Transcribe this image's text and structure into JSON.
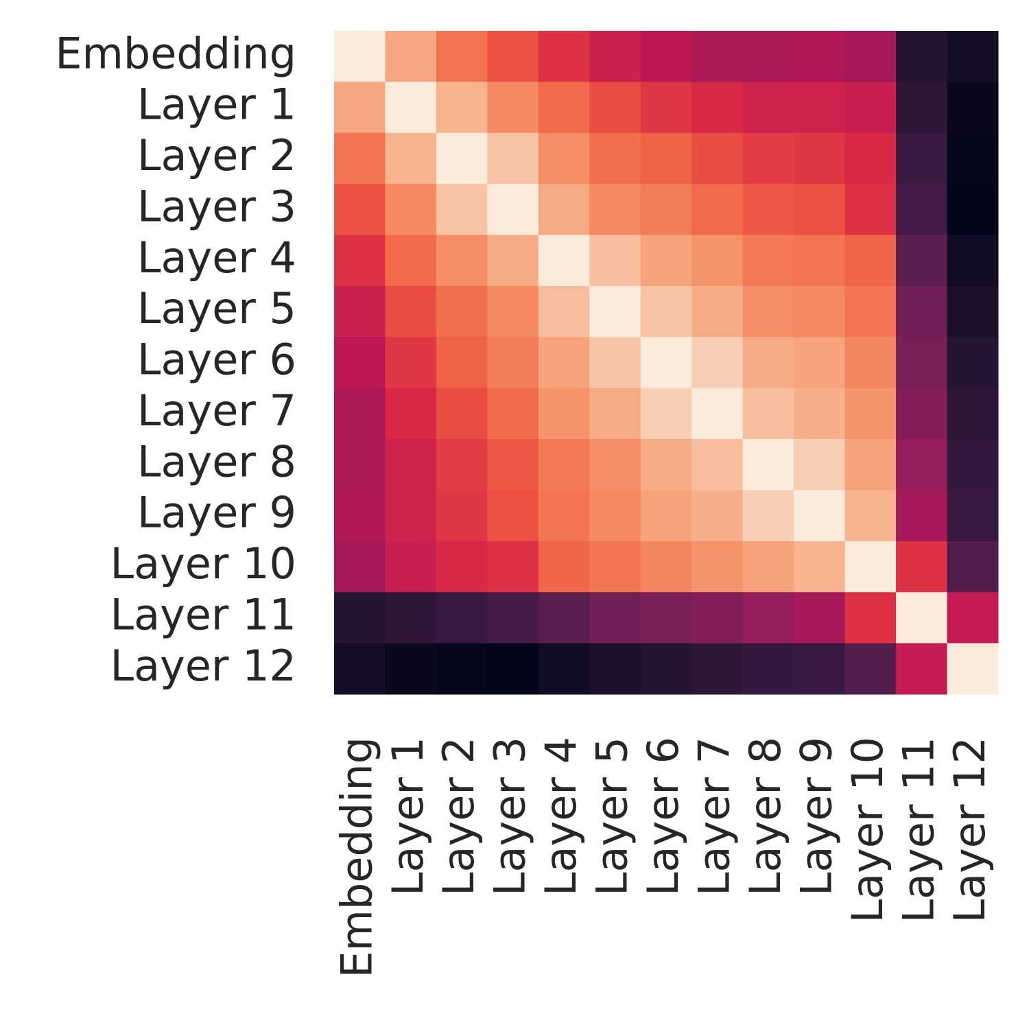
{
  "chart_data": {
    "type": "heatmap",
    "colormap": "rocket",
    "xcategories": [
      "Embedding",
      "Layer 1",
      "Layer 2",
      "Layer 3",
      "Layer 4",
      "Layer 5",
      "Layer 6",
      "Layer 7",
      "Layer 8",
      "Layer 9",
      "Layer 10",
      "Layer 11",
      "Layer 12"
    ],
    "ycategories": [
      "Embedding",
      "Layer 1",
      "Layer 2",
      "Layer 3",
      "Layer 4",
      "Layer 5",
      "Layer 6",
      "Layer 7",
      "Layer 8",
      "Layer 9",
      "Layer 10",
      "Layer 11",
      "Layer 12"
    ],
    "values": [
      [
        1,
        0.87,
        0.75,
        0.68,
        0.62,
        0.56,
        0.52,
        0.48,
        0.48,
        0.49,
        0.46,
        0.13,
        0.08
      ],
      [
        0.87,
        1,
        0.9,
        0.8,
        0.73,
        0.67,
        0.63,
        0.6,
        0.57,
        0.57,
        0.55,
        0.15,
        0.04
      ],
      [
        0.75,
        0.9,
        1,
        0.93,
        0.81,
        0.74,
        0.71,
        0.67,
        0.64,
        0.63,
        0.6,
        0.18,
        0.03
      ],
      [
        0.68,
        0.8,
        0.93,
        1,
        0.88,
        0.8,
        0.77,
        0.73,
        0.69,
        0.68,
        0.62,
        0.21,
        0.02
      ],
      [
        0.62,
        0.73,
        0.81,
        0.88,
        1,
        0.92,
        0.86,
        0.82,
        0.76,
        0.75,
        0.72,
        0.27,
        0.07
      ],
      [
        0.56,
        0.67,
        0.74,
        0.8,
        0.92,
        1,
        0.93,
        0.88,
        0.81,
        0.8,
        0.75,
        0.33,
        0.1
      ],
      [
        0.52,
        0.63,
        0.71,
        0.77,
        0.86,
        0.93,
        1,
        0.95,
        0.88,
        0.86,
        0.79,
        0.35,
        0.13
      ],
      [
        0.48,
        0.6,
        0.67,
        0.73,
        0.82,
        0.88,
        0.95,
        1,
        0.92,
        0.89,
        0.82,
        0.37,
        0.15
      ],
      [
        0.48,
        0.57,
        0.64,
        0.69,
        0.76,
        0.81,
        0.88,
        0.92,
        1,
        0.95,
        0.86,
        0.42,
        0.17
      ],
      [
        0.49,
        0.57,
        0.63,
        0.68,
        0.75,
        0.8,
        0.86,
        0.89,
        0.95,
        1,
        0.9,
        0.46,
        0.18
      ],
      [
        0.46,
        0.55,
        0.6,
        0.62,
        0.72,
        0.75,
        0.79,
        0.82,
        0.86,
        0.9,
        1,
        0.62,
        0.25
      ],
      [
        0.13,
        0.15,
        0.18,
        0.21,
        0.27,
        0.33,
        0.35,
        0.37,
        0.42,
        0.46,
        0.62,
        1,
        0.54
      ],
      [
        0.08,
        0.04,
        0.03,
        0.02,
        0.07,
        0.1,
        0.13,
        0.15,
        0.17,
        0.18,
        0.25,
        0.54,
        1
      ]
    ]
  }
}
